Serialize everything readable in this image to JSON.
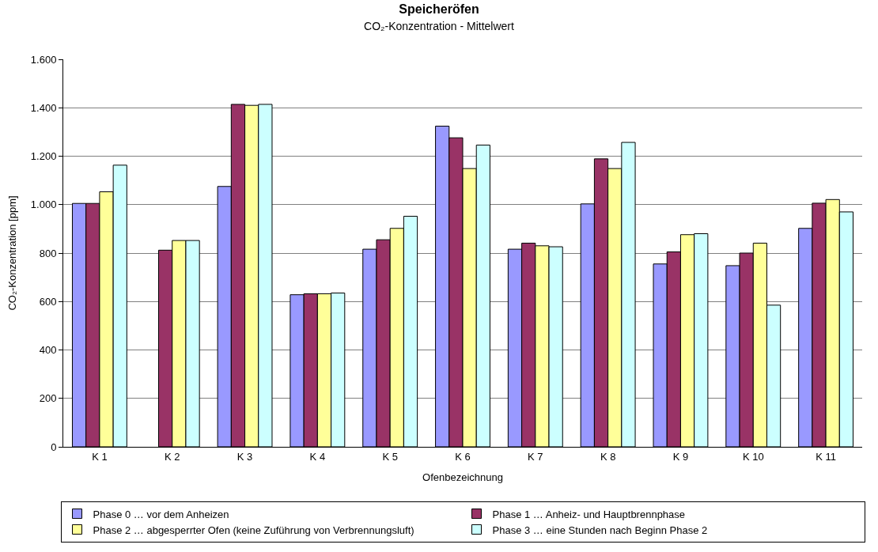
{
  "chart_data": {
    "type": "bar",
    "title": "Speicheröfen",
    "subtitle": "CO₂-Konzentration - Mittelwert",
    "xlabel": "Ofenbezeichnung",
    "ylabel": "CO₂-Konzentration [ppm]",
    "categories": [
      "K 1",
      "K 2",
      "K 3",
      "K 4",
      "K 5",
      "K 6",
      "K 7",
      "K 8",
      "K 9",
      "K 10",
      "K 11"
    ],
    "series": [
      {
        "name": "Phase 0 … vor dem Anheizen",
        "color": "#9999ff",
        "values": [
          1005,
          null,
          1075,
          628,
          816,
          1324,
          816,
          1003,
          755,
          748,
          902
        ]
      },
      {
        "name": "Phase 1 … Anheiz- und Hauptbrennphase",
        "color": "#993366",
        "values": [
          1005,
          812,
          1414,
          632,
          855,
          1276,
          841,
          1189,
          805,
          800,
          1006
        ]
      },
      {
        "name": "Phase 2 … abgesperrter Ofen (keine Zuführung von Verbrennungsluft)",
        "color": "#ffff99",
        "values": [
          1053,
          852,
          1410,
          632,
          902,
          1149,
          830,
          1149,
          876,
          841,
          1021
        ]
      },
      {
        "name": "Phase 3 … eine Stunden nach Beginn Phase 2",
        "color": "#ccffff",
        "values": [
          1163,
          852,
          1414,
          635,
          952,
          1246,
          826,
          1257,
          880,
          585,
          970
        ]
      }
    ],
    "ylim": [
      0,
      1600
    ],
    "yticks": [
      0,
      200,
      400,
      600,
      800,
      {
        "value": 1000,
        "label": "1.000"
      },
      {
        "value": 1200,
        "label": "1.200"
      },
      {
        "value": 1400,
        "label": "1.400"
      },
      {
        "value": 1600,
        "label": "1.600"
      }
    ],
    "grid": "y",
    "legend": "bottom"
  }
}
